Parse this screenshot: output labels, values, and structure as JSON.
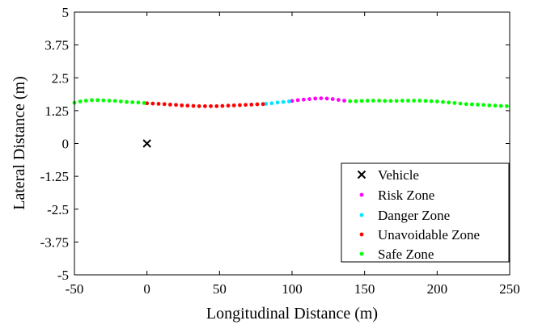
{
  "chart_data": {
    "type": "scatter",
    "xlabel": "Longitudinal Distance (m)",
    "ylabel": "Lateral Distance (m)",
    "xlim": [
      -50,
      250
    ],
    "ylim": [
      -5,
      5
    ],
    "x_ticks": [
      -50,
      0,
      50,
      100,
      150,
      200,
      250
    ],
    "x_tick_labels": [
      "-50",
      "0",
      "50",
      "100",
      "150",
      "200",
      "250"
    ],
    "y_ticks": [
      -5,
      -3.75,
      -2.5,
      -1.25,
      0,
      1.25,
      2.5,
      3.75,
      5
    ],
    "y_tick_labels": [
      "-5",
      "-3.75",
      "-2.5",
      "-1.25",
      "0",
      "1.25",
      "2.5",
      "3.75",
      "5"
    ],
    "grid": false,
    "legend_position": "bottom-right",
    "series": [
      {
        "name": "Vehicle",
        "marker": "x",
        "color": "#000000",
        "x": [
          0
        ],
        "y": [
          0
        ]
      },
      {
        "name": "Risk Zone",
        "marker": "dot",
        "color": "#ff00ff",
        "x": [
          100,
          104,
          108,
          112,
          116,
          120,
          124,
          128,
          132,
          136
        ],
        "y": [
          1.62,
          1.65,
          1.67,
          1.69,
          1.71,
          1.72,
          1.71,
          1.69,
          1.66,
          1.63
        ]
      },
      {
        "name": "Danger Zone",
        "marker": "dot",
        "color": "#00e5ff",
        "x": [
          82,
          86,
          90,
          94,
          98
        ],
        "y": [
          1.51,
          1.53,
          1.56,
          1.58,
          1.6
        ]
      },
      {
        "name": "Unavoidable Zone",
        "marker": "dot",
        "color": "#ff0000",
        "x": [
          0,
          4,
          8,
          12,
          16,
          20,
          24,
          28,
          32,
          36,
          40,
          44,
          48,
          52,
          56,
          60,
          64,
          68,
          72,
          76,
          80
        ],
        "y": [
          1.53,
          1.52,
          1.51,
          1.5,
          1.48,
          1.47,
          1.45,
          1.44,
          1.43,
          1.42,
          1.42,
          1.42,
          1.42,
          1.43,
          1.44,
          1.45,
          1.46,
          1.47,
          1.48,
          1.49,
          1.5
        ]
      },
      {
        "name": "Safe Zone",
        "marker": "dot",
        "color": "#00ff00",
        "x": [
          -50,
          -46,
          -42,
          -38,
          -34,
          -30,
          -26,
          -22,
          -18,
          -14,
          -10,
          -6,
          -2,
          140,
          144,
          148,
          152,
          156,
          160,
          164,
          168,
          172,
          176,
          180,
          184,
          188,
          192,
          196,
          200,
          204,
          208,
          212,
          216,
          220,
          224,
          228,
          232,
          236,
          240,
          244,
          248
        ],
        "y": [
          1.55,
          1.6,
          1.63,
          1.65,
          1.65,
          1.64,
          1.63,
          1.62,
          1.6,
          1.58,
          1.57,
          1.56,
          1.54,
          1.61,
          1.61,
          1.62,
          1.63,
          1.63,
          1.63,
          1.62,
          1.62,
          1.62,
          1.63,
          1.63,
          1.63,
          1.63,
          1.62,
          1.61,
          1.6,
          1.58,
          1.56,
          1.54,
          1.52,
          1.5,
          1.49,
          1.48,
          1.47,
          1.45,
          1.44,
          1.43,
          1.42
        ]
      }
    ]
  }
}
